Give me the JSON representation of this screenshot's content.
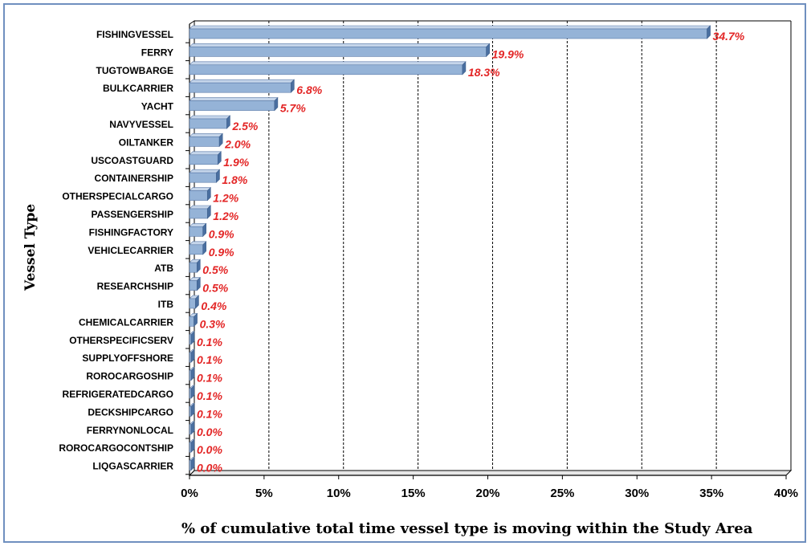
{
  "chart_data": {
    "type": "bar",
    "orientation": "horizontal",
    "title": "",
    "xlabel": "% of cumulative total time vessel type is moving within the Study Area",
    "ylabel": "Vessel Type",
    "xlim": [
      0,
      40
    ],
    "x_ticks": [
      "0%",
      "5%",
      "10%",
      "15%",
      "20%",
      "25%",
      "30%",
      "35%",
      "40%"
    ],
    "x_tick_values": [
      0,
      5,
      10,
      15,
      20,
      25,
      30,
      35,
      40
    ],
    "grid": "vertical dashed",
    "categories": [
      "FISHINGVESSEL",
      "FERRY",
      "TUGTOWBARGE",
      "BULKCARRIER",
      "YACHT",
      "NAVYVESSEL",
      "OILTANKER",
      "USCOASTGUARD",
      "CONTAINERSHIP",
      "OTHERSPECIALCARGO",
      "PASSENGERSHIP",
      "FISHINGFACTORY",
      "VEHICLECARRIER",
      "ATB",
      "RESEARCHSHIP",
      "ITB",
      "CHEMICALCARRIER",
      "OTHERSPECIFICSERV",
      "SUPPLYOFFSHORE",
      "ROROCARGOSHIP",
      "REFRIGERATEDCARGO",
      "DECKSHIPCARGO",
      "FERRYNONLOCAL",
      "ROROCARGOCONTSHIP",
      "LIQGASCARRIER"
    ],
    "values": [
      34.7,
      19.9,
      18.3,
      6.8,
      5.7,
      2.5,
      2.0,
      1.9,
      1.8,
      1.2,
      1.2,
      0.9,
      0.9,
      0.5,
      0.5,
      0.4,
      0.3,
      0.1,
      0.1,
      0.1,
      0.1,
      0.1,
      0.0,
      0.0,
      0.0
    ],
    "data_labels": [
      "34.7%",
      "19.9%",
      "18.3%",
      "6.8%",
      "5.7%",
      "2.5%",
      "2.0%",
      "1.9%",
      "1.8%",
      "1.2%",
      "1.2%",
      "0.9%",
      "0.9%",
      "0.5%",
      "0.5%",
      "0.4%",
      "0.3%",
      "0.1%",
      "0.1%",
      "0.1%",
      "0.1%",
      "0.1%",
      "0.0%",
      "0.0%",
      "0.0%"
    ],
    "colors": {
      "bar": "#95b3d7",
      "bar_top": "#c5d5ea",
      "bar_end": "#4a6fa0",
      "data_label": "#e32626",
      "frame": "#6f8fbf"
    }
  }
}
